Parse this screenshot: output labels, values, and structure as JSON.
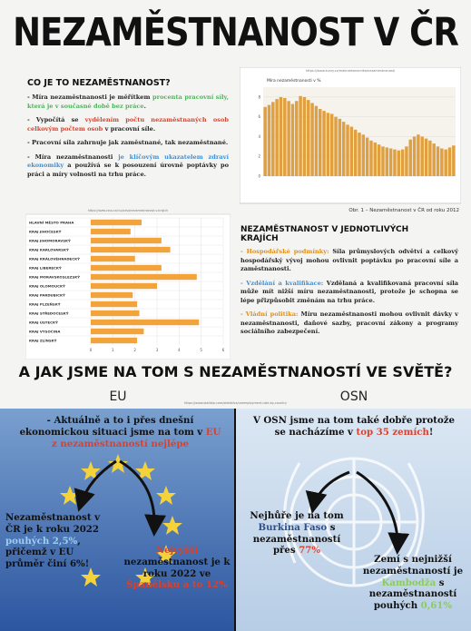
{
  "title": "NEZAMĚSTNANOST V ČR",
  "intro": {
    "heading": "CO JE TO NEZAMĚSTNANOST?",
    "paragraphs": [
      [
        "- Míra nezaměstnanosti je měřítkem ",
        "procenta pracovní síly, která je v současné době bez práce",
        "."
      ],
      [
        "- Vypočítá se ",
        "vydělením počtu nezaměstnaných osob celkovým počtem osob",
        " v pracovní síle."
      ],
      [
        "- Pracovní síla zahrnuje jak zaměstnané, tak nezaměstnané."
      ],
      [
        "- Míra nezaměstnanosti ",
        "je klíčovým ukazatelem zdraví ekonomiky",
        " a používá se k posouzení úrovně poptávky po práci a míry volnosti na trhu práce."
      ]
    ]
  },
  "chart_data": [
    {
      "type": "bar",
      "source": "https://www.kurzy.cz/makroekonomika/nezamestnanost/",
      "title": "Míra nezaměstnanosti v %",
      "caption": "Obr. 1 – Nezaměstnanost v ČR od roku 2012",
      "values": [
        7.0,
        7.2,
        7.5,
        7.8,
        8.0,
        7.9,
        7.6,
        7.3,
        7.6,
        8.1,
        8.0,
        7.7,
        7.4,
        7.1,
        6.8,
        6.6,
        6.4,
        6.3,
        6.0,
        5.8,
        5.5,
        5.2,
        5.0,
        4.7,
        4.4,
        4.2,
        3.9,
        3.6,
        3.4,
        3.2,
        3.0,
        2.9,
        2.8,
        2.7,
        2.6,
        2.7,
        3.0,
        3.7,
        4.0,
        4.2,
        4.0,
        3.8,
        3.6,
        3.3,
        3.0,
        2.8,
        2.7,
        2.9,
        3.1
      ],
      "color": "#e0a040",
      "ylim": [
        0,
        9
      ],
      "yticks": [
        0,
        2,
        4,
        6,
        8
      ],
      "grid": true
    },
    {
      "type": "hbar",
      "source": "https://www.czso.cz/csu/czso/nezamestnanost-v-krajich",
      "categories": [
        "HLAVNÍ MĚSTO PRAHA",
        "KRAJ JIHOČESKÝ",
        "KRAJ JIHOMORAVSKÝ",
        "KRAJ KARLOVARSKÝ",
        "KRAJ KRÁLOVÉHRADECKÝ",
        "KRAJ LIBERECKÝ",
        "KRAJ MORAVSKOSLEZSKÝ",
        "KRAJ OLOMOUCKÝ",
        "KRAJ PARDUBICKÝ",
        "KRAJ PLZEŇSKÝ",
        "KRAJ STŘEDOČESKÝ",
        "KRAJ ÚSTECKÝ",
        "KRAJ VYSOČINA",
        "KRAJ ZLÍNSKÝ"
      ],
      "values": [
        2.3,
        1.8,
        3.2,
        3.6,
        2.0,
        3.2,
        4.8,
        3.0,
        1.9,
        2.1,
        2.2,
        4.9,
        2.4,
        2.1
      ],
      "color": "#f2a33a",
      "xlim": [
        0,
        6
      ],
      "xticks": [
        0,
        1,
        2,
        3,
        4,
        5,
        6
      ],
      "grid": true
    }
  ],
  "regions": {
    "heading": "NEZAMĚSTNANOST V JEDNOTLIVÝCH KRAJÍCH",
    "bullets": [
      [
        "- Hospodářské podmínky:",
        " Síla průmyslových odvětví a celkový hospodářský vývoj mohou ovlivnit poptávku po pracovní síle a zaměstnanosti."
      ],
      [
        "- Vzdělání a kvalifikace:",
        " Vzdělaná a kvalifikovaná pracovní síla může mít nižší míru nezaměstnanosti, protože je schopna se lépe přizpůsobit změnám na trhu práce."
      ],
      [
        "- Vládní politika:",
        " Míru nezaměstnanosti mohou ovlivnit dávky v nezaměstnanosti, daňové sazby, pracovní zákony a programy sociálního zabezpečení."
      ]
    ]
  },
  "world": {
    "heading": "A JAK JSME NA TOM S NEZAMĚSTNANOSTÍ VE SVĚTĚ?",
    "source": "https://www.statista.com/statistics/unemployment-rate-by-country",
    "eu": {
      "label": "EU",
      "top": [
        "- Aktuálně a to i přes dnešní ekonomickou situaci jsme na tom v ",
        "EU z nezaměstnaností nejlépe"
      ],
      "left": [
        "Nezaměstnanost v ČR je k roku 2022 ",
        "pouhých 2,5%",
        ", přičemž v EU průměr činí 6%!"
      ],
      "right": [
        "Nejvyšší",
        " nezaměstnanost je k roku 2022 ve ",
        "Španělsku a to 12%"
      ]
    },
    "osn": {
      "label": "OSN",
      "top": [
        "V OSN jsme na tom také dobře protože se nacházíme v ",
        "top 35 zemích",
        "!"
      ],
      "left": [
        "Nejhůře je na tom ",
        "Burkina Faso",
        " s nezaměstnaností přes ",
        "77%"
      ],
      "right": [
        "Zemí s nejnižší nezaměstnaností je ",
        "Kambodža",
        " s nezaměstnaností pouhých ",
        "0,61%"
      ]
    }
  }
}
